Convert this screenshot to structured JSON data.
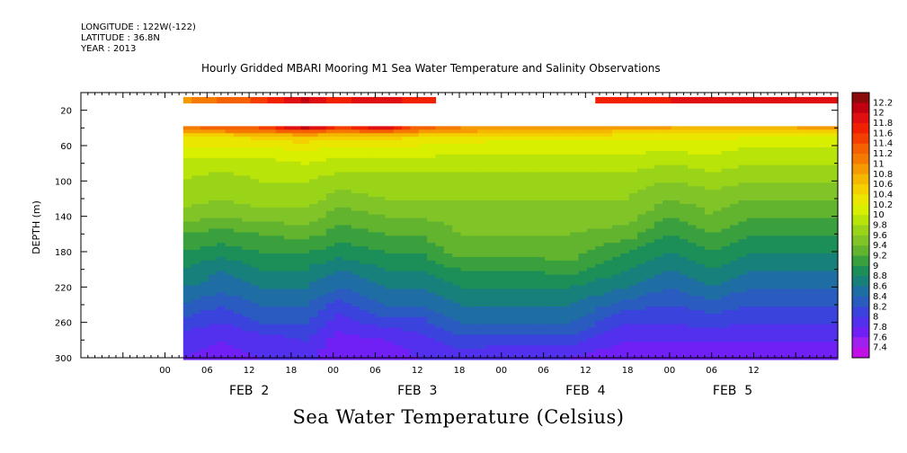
{
  "header": {
    "longitude": "LONGITUDE : 122W(-122)",
    "latitude": "LATITUDE : 36.8N",
    "year": "YEAR : 2013"
  },
  "chart_data": {
    "type": "heatmap",
    "title": "Hourly Gridded MBARI Mooring M1 Sea Water Temperature and Salinity Observations",
    "xlabel": "",
    "ylabel": "DEPTH (m)",
    "colorbar_label": "Sea Water Temperature (Celsius)",
    "x_range_hours": [
      -12,
      96
    ],
    "x_data_range_hours": [
      2.6,
      96
    ],
    "x_tick_labels": [
      "00",
      "06",
      "12",
      "18",
      "00",
      "06",
      "12",
      "18",
      "00",
      "06",
      "12",
      "18",
      "00",
      "06",
      "12"
    ],
    "x_tick_hours": [
      0,
      6,
      12,
      18,
      24,
      30,
      36,
      42,
      48,
      54,
      60,
      66,
      72,
      78,
      84
    ],
    "date_labels": [
      "FEB  2",
      "FEB  3",
      "FEB  4",
      "FEB  5"
    ],
    "date_label_hours": [
      12,
      36,
      60,
      81
    ],
    "y_range": [
      300,
      0
    ],
    "y_ticks": [
      20,
      60,
      100,
      140,
      180,
      220,
      260,
      300
    ],
    "colorbar_levels": [
      "12.2",
      "12",
      "11.8",
      "11.6",
      "11.4",
      "11.2",
      "11",
      "10.8",
      "10.6",
      "10.4",
      "10.2",
      "10",
      "9.8",
      "9.6",
      "9.4",
      "9.2",
      "9",
      "8.8",
      "8.6",
      "8.4",
      "8.2",
      "8",
      "7.8",
      "7.6",
      "7.4"
    ],
    "colors": [
      "#8b0a0a",
      "#c10010",
      "#e01010",
      "#f02000",
      "#f43e00",
      "#f56000",
      "#f57a00",
      "#f59a00",
      "#f5b800",
      "#f5d000",
      "#eae600",
      "#d8ef00",
      "#b8e40a",
      "#9ad418",
      "#80c428",
      "#62b42e",
      "#3aa03e",
      "#1c8e58",
      "#18807a",
      "#1e6ea4",
      "#2a5cc0",
      "#3a44dc",
      "#5230ee",
      "#7020f5",
      "#a020f0",
      "#c010e8"
    ],
    "depths": [
      10,
      40,
      45,
      50,
      60,
      80,
      100,
      120,
      140,
      160,
      180,
      200,
      220,
      240,
      260,
      280,
      300
    ],
    "series": [
      {
        "hour": 2.6,
        "temps": [
          10.9,
          11.1,
          10.8,
          10.4,
          10.2,
          9.9,
          9.8,
          9.7,
          9.5,
          9.2,
          9.0,
          8.8,
          8.6,
          8.4,
          8.1,
          7.9,
          7.8
        ]
      },
      {
        "hour": 8,
        "temps": [
          11.2,
          11.3,
          10.9,
          10.3,
          10.2,
          9.9,
          9.7,
          9.6,
          9.4,
          9.1,
          8.9,
          8.6,
          8.5,
          8.2,
          8.0,
          7.8,
          7.7
        ]
      },
      {
        "hour": 14,
        "temps": [
          11.5,
          11.4,
          11.0,
          10.5,
          10.2,
          9.9,
          9.8,
          9.7,
          9.5,
          9.2,
          9.0,
          8.8,
          8.6,
          8.4,
          8.2,
          7.9,
          7.8
        ]
      },
      {
        "hour": 20,
        "temps": [
          12.0,
          12.1,
          11.2,
          10.6,
          10.3,
          10.0,
          9.8,
          9.7,
          9.5,
          9.3,
          9.0,
          8.8,
          8.6,
          8.4,
          8.2,
          8.0,
          7.9
        ]
      },
      {
        "hour": 25,
        "temps": [
          11.7,
          11.5,
          11.0,
          10.5,
          10.2,
          9.9,
          9.7,
          9.5,
          9.3,
          9.1,
          8.9,
          8.6,
          8.4,
          8.1,
          7.9,
          7.7,
          7.6
        ]
      },
      {
        "hour": 31,
        "temps": [
          12.0,
          12.0,
          11.1,
          10.5,
          10.2,
          9.9,
          9.7,
          9.6,
          9.4,
          9.2,
          9.0,
          8.8,
          8.6,
          8.4,
          8.1,
          7.8,
          7.6
        ]
      },
      {
        "hour": 36,
        "temps": [
          11.6,
          11.3,
          10.9,
          10.4,
          10.2,
          9.9,
          9.7,
          9.6,
          9.4,
          9.2,
          9.0,
          8.8,
          8.6,
          8.4,
          8.1,
          7.9,
          7.8
        ]
      },
      {
        "hour": 42,
        "temps": [
          null,
          11.0,
          10.8,
          10.4,
          10.1,
          9.9,
          9.7,
          9.6,
          9.5,
          9.4,
          9.3,
          9.0,
          8.8,
          8.6,
          8.4,
          8.1,
          7.9
        ]
      },
      {
        "hour": 50,
        "temps": [
          null,
          10.9,
          10.7,
          10.3,
          10.1,
          9.9,
          9.7,
          9.6,
          9.5,
          9.4,
          9.3,
          9.0,
          8.8,
          8.6,
          8.4,
          8.1,
          7.8
        ]
      },
      {
        "hour": 58,
        "temps": [
          null,
          10.9,
          10.7,
          10.3,
          10.1,
          9.9,
          9.7,
          9.6,
          9.5,
          9.4,
          9.3,
          9.1,
          8.8,
          8.6,
          8.4,
          8.1,
          7.8
        ]
      },
      {
        "hour": 66,
        "temps": [
          11.7,
          10.8,
          10.5,
          10.3,
          10.1,
          9.9,
          9.7,
          9.6,
          9.5,
          9.3,
          9.0,
          8.8,
          8.6,
          8.3,
          8.0,
          7.8,
          7.6
        ]
      },
      {
        "hour": 72,
        "temps": [
          11.8,
          10.8,
          10.5,
          10.3,
          10.1,
          9.8,
          9.6,
          9.4,
          9.2,
          9.0,
          8.8,
          8.6,
          8.4,
          8.2,
          8.0,
          7.8,
          7.7
        ]
      },
      {
        "hour": 78,
        "temps": [
          11.8,
          10.7,
          10.4,
          10.3,
          10.1,
          9.9,
          9.7,
          9.5,
          9.4,
          9.2,
          9.0,
          8.8,
          8.6,
          8.3,
          8.1,
          7.8,
          7.6
        ]
      },
      {
        "hour": 84,
        "temps": [
          11.8,
          10.7,
          10.4,
          10.2,
          10.0,
          9.8,
          9.6,
          9.4,
          9.2,
          9.0,
          8.8,
          8.6,
          8.4,
          8.2,
          8.0,
          7.8,
          7.7
        ]
      },
      {
        "hour": 90,
        "temps": [
          11.8,
          10.8,
          10.4,
          10.2,
          10.0,
          9.8,
          9.6,
          9.4,
          9.2,
          9.0,
          8.8,
          8.6,
          8.4,
          8.2,
          8.0,
          7.8,
          7.7
        ]
      },
      {
        "hour": 96,
        "temps": [
          11.8,
          10.8,
          10.4,
          10.2,
          10.0,
          9.8,
          9.6,
          9.4,
          9.2,
          9.0,
          8.8,
          8.6,
          8.4,
          8.2,
          8.0,
          7.8,
          7.7
        ]
      }
    ],
    "grid": false,
    "legend": "right"
  }
}
